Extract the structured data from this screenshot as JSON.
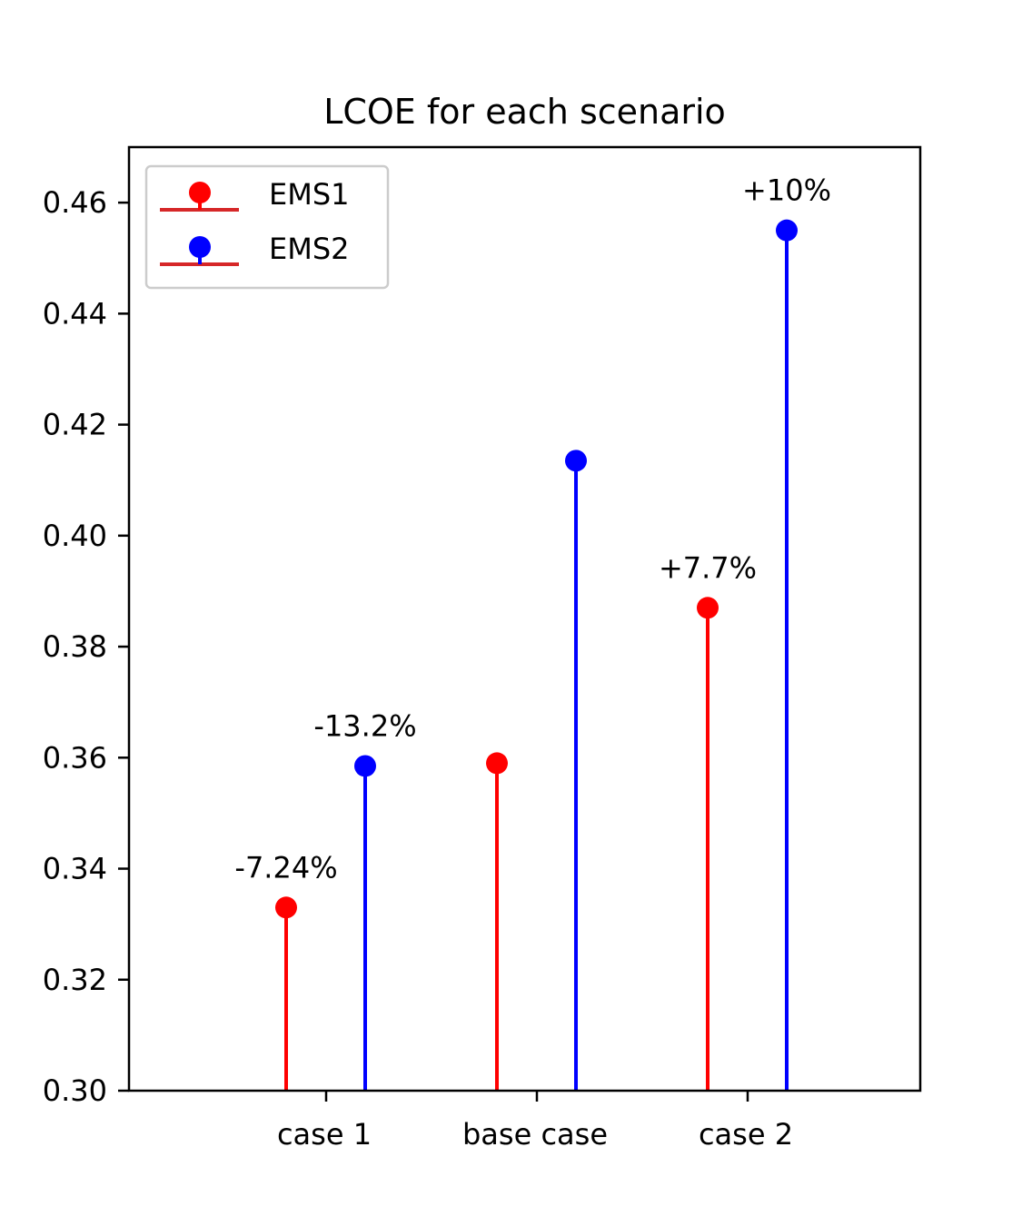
{
  "chart_data": {
    "type": "stem",
    "title": "LCOE for each scenario",
    "xlabel": "",
    "ylabel": "",
    "ylim": [
      0.3,
      0.47
    ],
    "yticks": [
      "0.30",
      "0.32",
      "0.34",
      "0.36",
      "0.38",
      "0.40",
      "0.42",
      "0.44",
      "0.46"
    ],
    "categories": [
      "case 1",
      "base case",
      "case 2"
    ],
    "series": [
      {
        "name": "EMS1",
        "color": "#ff0000",
        "values": [
          0.333,
          0.359,
          0.387
        ],
        "labels": [
          "-7.24%",
          "",
          "+7.7%"
        ]
      },
      {
        "name": "EMS2",
        "color": "#0000ff",
        "values": [
          0.3585,
          0.4135,
          0.455
        ],
        "labels": [
          "-13.2%",
          "",
          "+10%"
        ]
      }
    ],
    "legend": {
      "position": "top-left",
      "marker_line_color": "#d62728"
    },
    "grid": false
  }
}
